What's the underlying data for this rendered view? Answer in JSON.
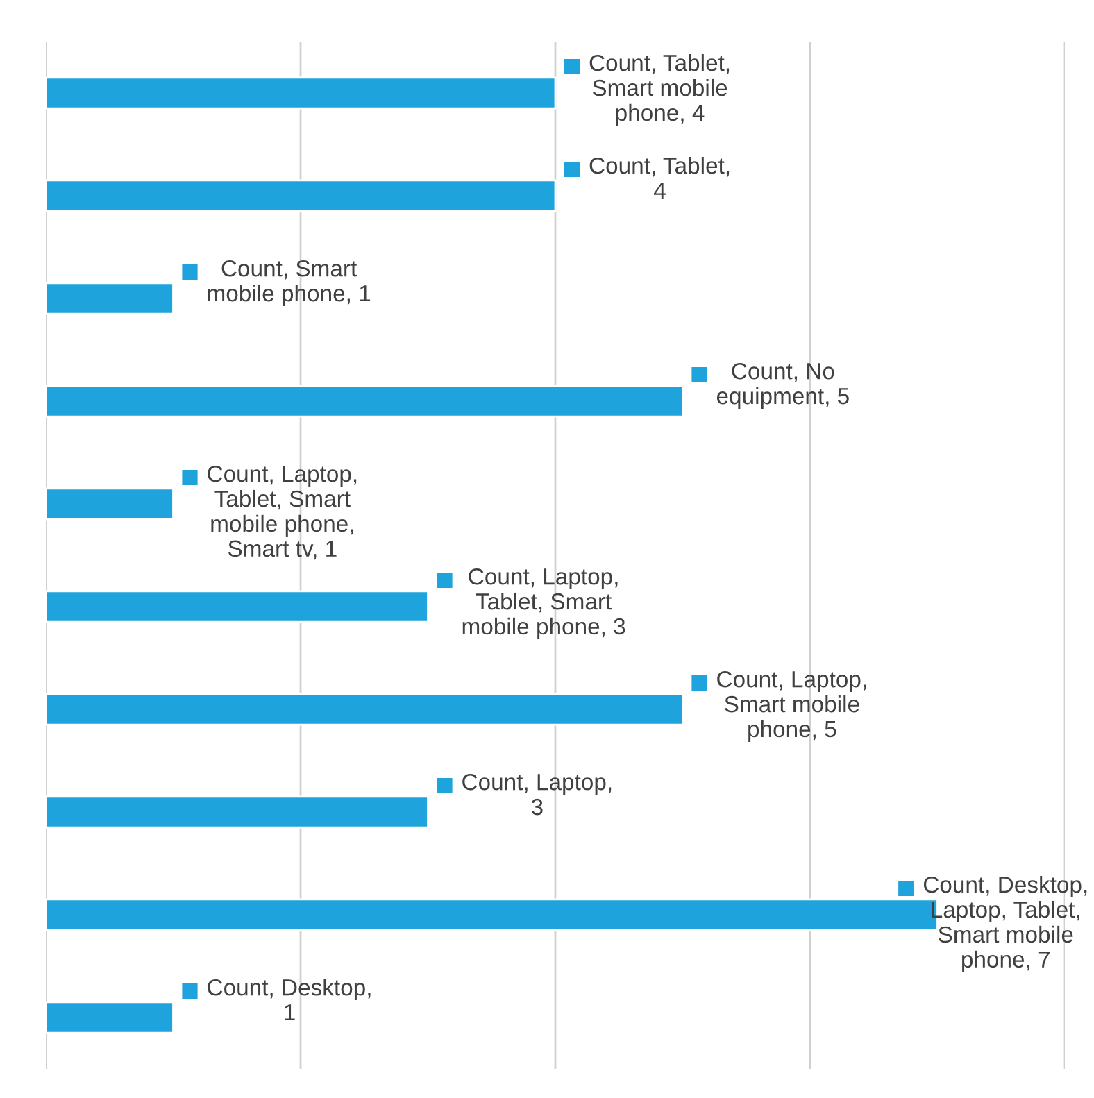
{
  "chart_data": {
    "type": "bar",
    "orientation": "horizontal",
    "categories": [
      null,
      null,
      null,
      null,
      null,
      null,
      null,
      null,
      null,
      null
    ],
    "values": [
      4,
      4,
      1,
      5,
      1,
      3,
      5,
      3,
      7,
      1
    ],
    "color": "#1fa3dc",
    "value_labels": [
      "Count, Tablet, Smart mobile phone, 4",
      "Count, Tablet, 4",
      "Count, Smart mobile phone, 1",
      "Count, No equipment, 5",
      "Count, Laptop, Tablet, Smart mobile phone, Smart tv, 1",
      "Count, Laptop, Tablet, Smart mobile phone, 3",
      "Count, Laptop, Smart mobile phone, 5",
      "Count, Laptop, 3",
      "Count, Desktop, Laptop, Tablet, Smart mobile phone, 7",
      "Count, Desktop, 1"
    ],
    "grid": "x",
    "tick_labels": false
  }
}
